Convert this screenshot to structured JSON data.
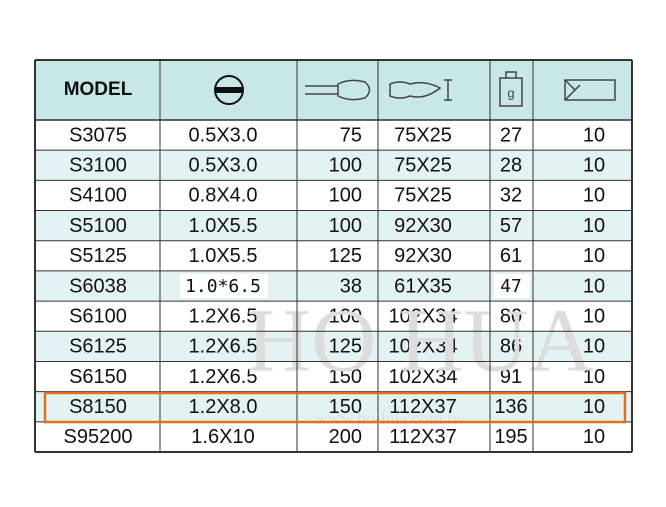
{
  "table": {
    "header": {
      "model": "MODEL"
    },
    "rows": [
      [
        "S3075",
        "0.5X3.0",
        "75",
        "75X25",
        "27",
        "10"
      ],
      [
        "S3100",
        "0.5X3.0",
        "100",
        "75X25",
        "28",
        "10"
      ],
      [
        "S4100",
        "0.8X4.0",
        "100",
        "75X25",
        "32",
        "10"
      ],
      [
        "S5100",
        "1.0X5.5",
        "100",
        "92X30",
        "57",
        "10"
      ],
      [
        "S5125",
        "1.0X5.5",
        "125",
        "92X30",
        "61",
        "10"
      ],
      [
        "S6038",
        "1.0*6.5",
        "38",
        "61X35",
        "47",
        "10"
      ],
      [
        "S6100",
        "1.2X6.5",
        "100",
        "102X34",
        "80",
        "10"
      ],
      [
        "S6125",
        "1.2X6.5",
        "125",
        "102X34",
        "86",
        "10"
      ],
      [
        "S6150",
        "1.2X6.5",
        "150",
        "102X34",
        "91",
        "10"
      ],
      [
        "S8150",
        "1.2X8.0",
        "150",
        "112X37",
        "136",
        "10"
      ],
      [
        "S95200",
        "1.6X10",
        "200",
        "112X37",
        "195",
        "10"
      ]
    ]
  },
  "watermark": {
    "brand": "HO HUA",
    "url": "www.ho-hua.com.tw"
  }
}
